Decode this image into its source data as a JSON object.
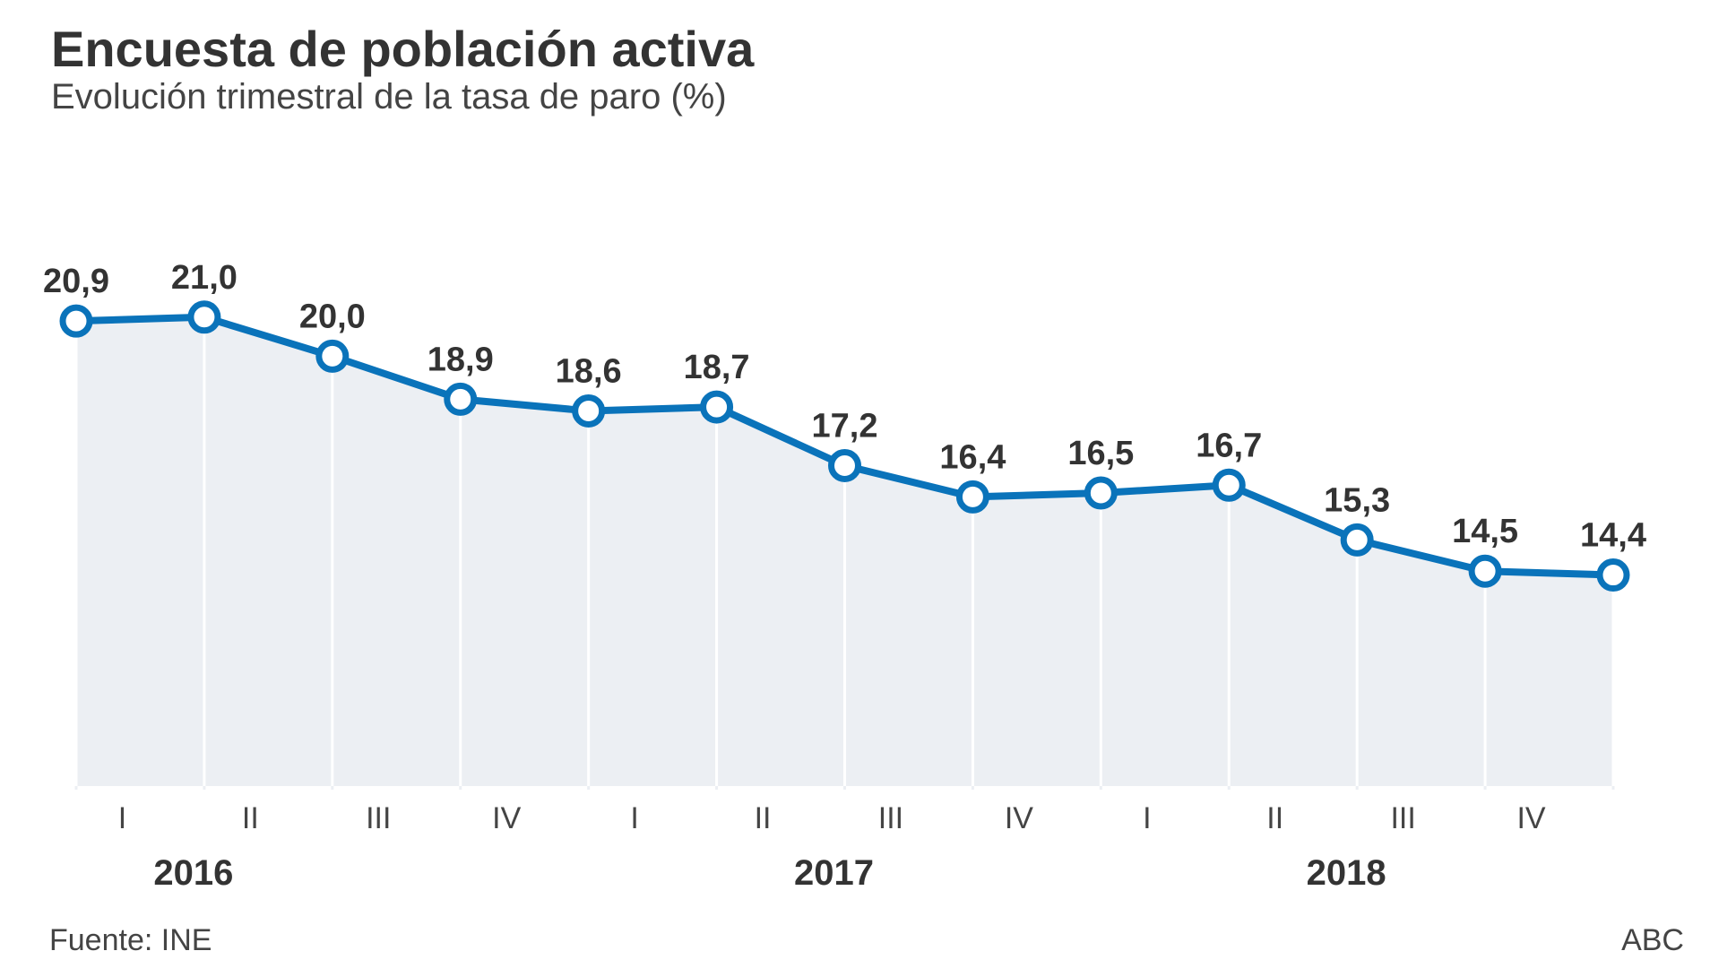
{
  "header": {
    "title": "Encuesta de población activa",
    "subtitle": "Evolución trimestral de la tasa de paro (%)"
  },
  "footer": {
    "source": "Fuente: INE",
    "credit": "ABC"
  },
  "colors": {
    "line": "#0a73ba",
    "area": "#eceff3",
    "grid": "#ffffff"
  },
  "chart_data": {
    "type": "line",
    "categories": [
      "I",
      "II",
      "III",
      "IV",
      "I",
      "II",
      "III",
      "IV",
      "I",
      "II",
      "III",
      "IV",
      ""
    ],
    "values": [
      20.9,
      21.0,
      20.0,
      18.9,
      18.6,
      18.7,
      17.2,
      16.4,
      16.5,
      16.7,
      15.3,
      14.5,
      14.4
    ],
    "labels": [
      "20,9",
      "21,0",
      "20,0",
      "18,9",
      "18,6",
      "18,7",
      "17,2",
      "16,4",
      "16,5",
      "16,7",
      "15,3",
      "14,5",
      "14,4"
    ],
    "years": [
      {
        "label": "2016",
        "start": 0,
        "span": 1
      },
      {
        "label": "2017",
        "start": 4,
        "span": 3
      },
      {
        "label": "2018",
        "start": 8,
        "span": 3
      }
    ],
    "ylim": [
      9,
      21.5
    ],
    "area_fill": true,
    "grid": "vertical",
    "legend": "none"
  }
}
